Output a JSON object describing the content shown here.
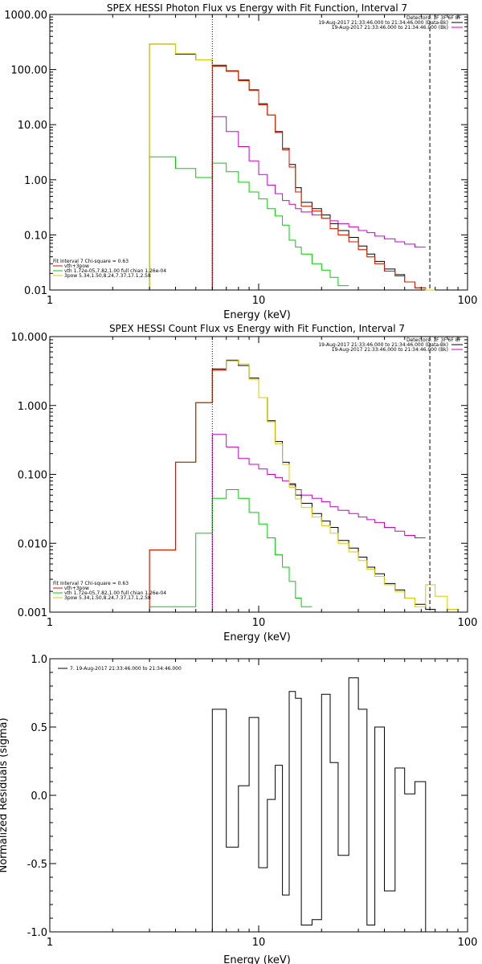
{
  "colors": {
    "data": "#000000",
    "total": "#e0c800",
    "vth": "#00d000",
    "bpow": "#cc00cc",
    "sum": "#e01000",
    "background": "#cc00cc",
    "frame": "#000000"
  },
  "chart_data": [
    {
      "type": "line",
      "title": "SPEX HESSI Photon Flux vs Energy with Fit Function, Interval 7",
      "xlabel": "Energy (keV)",
      "ylabel": "",
      "xscale": "log",
      "yscale": "log",
      "xlim": [
        1,
        100
      ],
      "ylim": [
        0.01,
        1000
      ],
      "xticks": [
        1,
        10,
        100
      ],
      "xtick_labels": [
        "1",
        "10",
        "100"
      ],
      "yticks": [
        0.01,
        0.1,
        1,
        10,
        100,
        1000
      ],
      "ytick_labels": [
        "0.01",
        "0.10",
        "1.00",
        "10.00",
        "100.00",
        "1000.00"
      ],
      "grid": false,
      "fit_range": [
        6.0,
        66.0
      ],
      "edges": [
        3,
        4,
        5,
        6,
        7,
        8,
        9,
        10,
        11,
        12,
        13,
        14,
        15,
        16,
        18,
        20,
        22,
        24,
        27,
        30,
        33,
        36,
        40,
        45,
        50,
        56,
        63,
        70
      ],
      "series": [
        {
          "key": "data",
          "values": [
            290,
            190,
            150,
            120,
            95,
            65,
            43,
            24,
            15,
            7.5,
            3.7,
            1.9,
            0.72,
            0.39,
            0.3,
            0.23,
            0.16,
            0.12,
            0.09,
            0.063,
            0.045,
            0.033,
            0.024,
            0.019,
            0.014,
            0.011,
            0.009
          ]
        },
        {
          "key": "total",
          "values": [
            290,
            195,
            150,
            115,
            93,
            63,
            42,
            23,
            15,
            7.2,
            3.5,
            1.7,
            0.6,
            0.33,
            0.27,
            0.2,
            0.13,
            0.1,
            0.075,
            0.054,
            0.04,
            0.03,
            0.022,
            0.018,
            0.014,
            0.011,
            0.009
          ]
        },
        {
          "key": "sum",
          "values": [
            null,
            null,
            null,
            115,
            93,
            63,
            42,
            23,
            15,
            7.2,
            3.5,
            1.7,
            0.6,
            0.33,
            0.27,
            0.2,
            0.13,
            0.1,
            0.075,
            0.054,
            0.04,
            0.03,
            0.022,
            0.018,
            0.014,
            0.011
          ]
        },
        {
          "key": "vth",
          "values": [
            2.6,
            1.6,
            1.1,
            2.0,
            1.4,
            0.9,
            0.6,
            0.45,
            0.3,
            0.22,
            0.15,
            0.08,
            0.06,
            0.045,
            0.03,
            0.023,
            0.017,
            0.012,
            null,
            null,
            null,
            null,
            null,
            null,
            null,
            null,
            null
          ]
        },
        {
          "key": "bpow",
          "values": [
            null,
            null,
            null,
            14,
            7.5,
            4.0,
            2.2,
            1.25,
            0.8,
            0.56,
            0.42,
            0.36,
            0.3,
            0.26,
            0.23,
            0.2,
            0.18,
            0.16,
            0.14,
            0.12,
            0.11,
            0.095,
            0.085,
            0.075,
            0.068,
            0.06
          ]
        }
      ],
      "vlines": [
        {
          "x": 6.0,
          "style": "dotted"
        },
        {
          "x": 66.0,
          "style": "dashed"
        }
      ],
      "legend_top": [
        "Detectors: 1F 3F 6F 8F",
        "19-Aug-2017 21:33:46.000 to 21:34:46.000 (Data-Bk)",
        "19-Aug-2017 21:33:46.000 to 21:34:46.000 (Bk)"
      ],
      "legend_bottom": [
        "Fit Interval 7   Chi-square = 0.63",
        "vth+3pow",
        "vth 1.72e-05,7.82,1.00  full chian 1.26e-04",
        "3pow 5.34,1.50,8.24,7.37,17.1,2.58"
      ]
    },
    {
      "type": "line",
      "title": "SPEX HESSI Count Flux vs Energy with Fit Function, Interval 7",
      "xlabel": "Energy (keV)",
      "ylabel": "",
      "xscale": "log",
      "yscale": "log",
      "xlim": [
        1,
        100
      ],
      "ylim": [
        0.001,
        10
      ],
      "xticks": [
        1,
        10,
        100
      ],
      "xtick_labels": [
        "1",
        "10",
        "100"
      ],
      "yticks": [
        0.001,
        0.01,
        0.1,
        1,
        10
      ],
      "ytick_labels": [
        "0.001",
        "0.010",
        "0.100",
        "1.000",
        "10.000"
      ],
      "grid": false,
      "fit_range": [
        6.0,
        66.0
      ],
      "edges": [
        3,
        4,
        5,
        6,
        7,
        8,
        9,
        10,
        11,
        12,
        13,
        14,
        15,
        16,
        18,
        20,
        22,
        24,
        27,
        30,
        33,
        36,
        40,
        45,
        50,
        56,
        63,
        70,
        80,
        90
      ],
      "series": [
        {
          "key": "data",
          "values": [
            0.008,
            0.15,
            1.1,
            3.4,
            4.5,
            3.8,
            2.5,
            1.3,
            0.6,
            0.3,
            0.15,
            0.073,
            0.05,
            0.038,
            0.027,
            0.021,
            0.017,
            0.011,
            0.0085,
            0.0063,
            0.0045,
            0.0036,
            0.0026,
            0.0021,
            0.0016,
            0.0013,
            0.0011,
            null,
            null
          ]
        },
        {
          "key": "total",
          "values": [
            0.008,
            0.15,
            1.1,
            3.2,
            4.6,
            4.0,
            2.4,
            1.3,
            0.58,
            0.28,
            0.14,
            0.065,
            0.044,
            0.033,
            0.024,
            0.018,
            0.014,
            0.01,
            0.0075,
            0.0056,
            0.0042,
            0.0033,
            0.0025,
            0.002,
            0.0016,
            0.0012,
            0.0025,
            0.0017,
            0.0011
          ]
        },
        {
          "key": "sum",
          "values": [
            0.008,
            0.15,
            1.1,
            3.3,
            null,
            null,
            null,
            null,
            null,
            null,
            null,
            null,
            null,
            null,
            null,
            null,
            null,
            null,
            null,
            null,
            null,
            null,
            null,
            null,
            null,
            null,
            null,
            null,
            null
          ]
        },
        {
          "key": "vth",
          "values": [
            0.0012,
            0.0012,
            0.014,
            0.045,
            0.06,
            0.045,
            0.028,
            0.019,
            0.012,
            0.0068,
            0.0045,
            0.0028,
            0.0016,
            0.0012,
            null,
            null,
            null,
            null,
            null,
            null,
            null,
            null,
            null,
            null,
            null,
            null,
            null,
            null,
            null
          ]
        },
        {
          "key": "bpow",
          "values": [
            null,
            null,
            null,
            0.38,
            0.25,
            0.17,
            0.14,
            0.12,
            0.1,
            0.09,
            0.08,
            0.07,
            0.06,
            0.05,
            0.045,
            0.04,
            0.034,
            0.03,
            0.027,
            0.024,
            0.022,
            0.02,
            0.017,
            0.015,
            0.013,
            0.012,
            null,
            null,
            null
          ]
        }
      ],
      "vlines": [
        {
          "x": 6.0,
          "style": "dotted"
        },
        {
          "x": 66.0,
          "style": "dashed"
        }
      ],
      "legend_top": [
        "Detectors: 1F 3F 6F 8F",
        "19-Aug-2017 21:33:46.000 to 21:34:46.000 (Data-Bk)",
        "19-Aug-2017 21:33:46.000 to 21:34:46.000 (Bk)"
      ],
      "legend_bottom": [
        "Fit Interval 7   Chi-square = 0.63",
        "vth+3pow",
        "vth 1.72e-05,7.82,1.00  full chian 1.26e-04",
        "3pow 5.34,1.50,8.24,7.37,17.1,2.58"
      ]
    },
    {
      "type": "line",
      "title": "",
      "xlabel": "Energy (keV)",
      "ylabel": "Normalized Residuals (sigma)",
      "xscale": "log",
      "yscale": "linear",
      "xlim": [
        1,
        100
      ],
      "ylim": [
        -1.0,
        1.0
      ],
      "xticks": [
        1,
        10,
        100
      ],
      "xtick_labels": [
        "1",
        "10",
        "100"
      ],
      "yticks": [
        -1.0,
        -0.5,
        0.0,
        0.5,
        1.0
      ],
      "ytick_labels": [
        "-1.0",
        "-0.5",
        "0.0",
        "0.5",
        "1.0"
      ],
      "grid": false,
      "legend": "7. 19-Aug-2017 21:33:46.000 to 21:34:46.000",
      "edges": [
        6,
        7,
        8,
        9,
        10,
        11,
        12,
        13,
        14,
        15,
        16,
        18,
        20,
        22,
        24,
        27,
        30,
        33,
        36,
        40,
        45,
        50,
        56,
        63,
        70
      ],
      "values": [
        0.63,
        -0.38,
        0.07,
        0.57,
        -0.53,
        -0.03,
        0.22,
        -0.73,
        0.76,
        0.71,
        -0.95,
        -0.91,
        0.74,
        0.24,
        -0.44,
        0.86,
        0.63,
        -0.95,
        0.5,
        -0.7,
        0.2,
        0.01,
        0.1,
        -1.0
      ]
    }
  ]
}
